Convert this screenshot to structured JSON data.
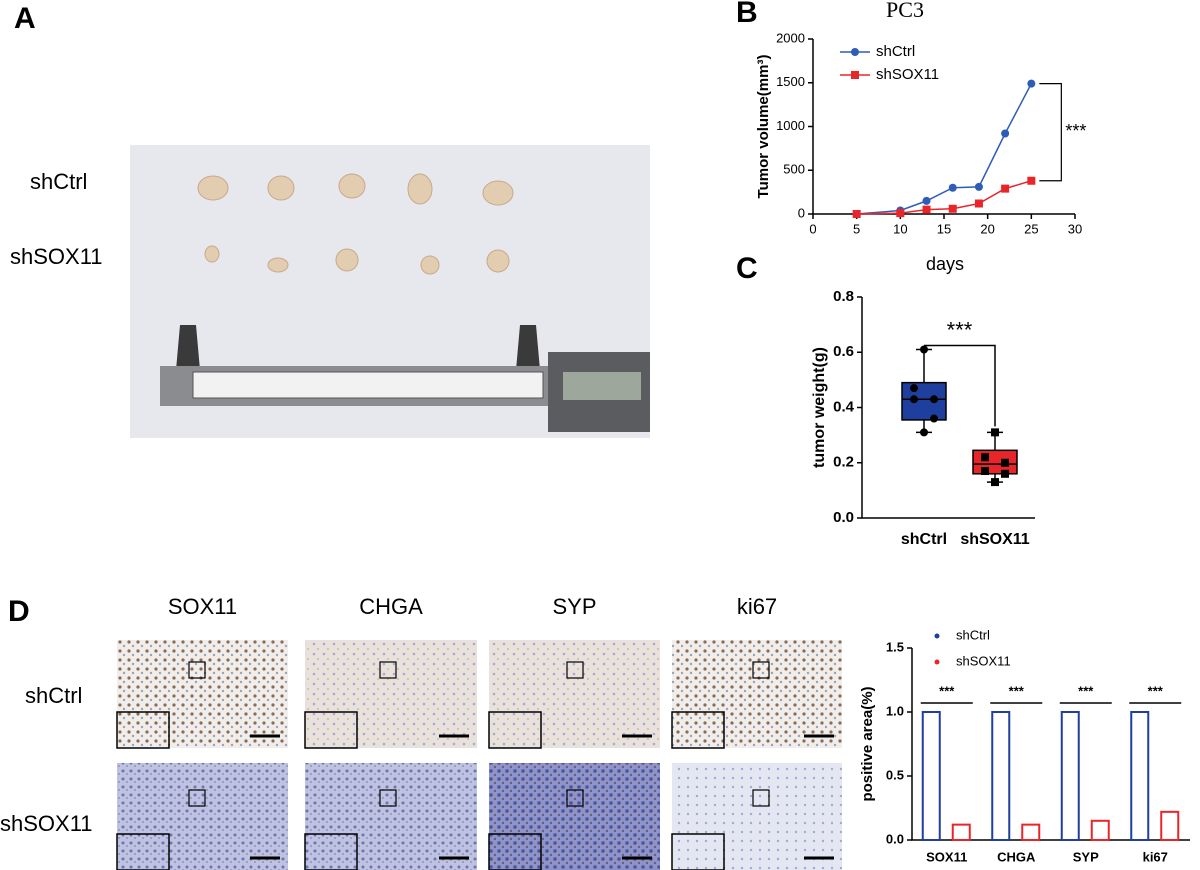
{
  "panel_labels": [
    "A",
    "B",
    "C",
    "D"
  ],
  "photo": {
    "rows": [
      "shCtrl",
      "shSOX11"
    ]
  },
  "ihc": {
    "columns": [
      "SOX11",
      "CHGA",
      "SYP",
      "ki67"
    ],
    "rows": [
      "shCtrl",
      "shSOX11"
    ]
  },
  "chart_data": [
    {
      "type": "line",
      "title": "PC3",
      "x_label": "days",
      "y_label": "Tumor volume(mm³)",
      "x": [
        5,
        10,
        13,
        16,
        19,
        22,
        25
      ],
      "series": [
        {
          "name": "shCtrl",
          "color": "#2e5cb8",
          "marker": "circle",
          "values": [
            0,
            40,
            150,
            300,
            310,
            920,
            1490
          ]
        },
        {
          "name": "shSOX11",
          "color": "#e8262a",
          "marker": "square",
          "values": [
            0,
            10,
            50,
            60,
            120,
            290,
            380
          ]
        }
      ],
      "xlim": [
        0,
        30
      ],
      "xticks": [
        0,
        5,
        10,
        15,
        20,
        25,
        30
      ],
      "ylim": [
        0,
        2000
      ],
      "yticks": [
        0,
        500,
        1000,
        1500,
        2000
      ],
      "annotation": "***"
    },
    {
      "type": "box",
      "y_label": "tumor weight(g)",
      "categories": [
        "shCtrl",
        "shSOX11"
      ],
      "colors": [
        "#1f3f9f",
        "#e8262a"
      ],
      "boxes": [
        {
          "min": 0.31,
          "q1": 0.355,
          "median": 0.43,
          "q3": 0.49,
          "max": 0.61,
          "points": [
            0.61,
            0.47,
            0.43,
            0.43,
            0.36,
            0.31
          ]
        },
        {
          "min": 0.13,
          "q1": 0.16,
          "median": 0.195,
          "q3": 0.245,
          "max": 0.31,
          "points": [
            0.31,
            0.22,
            0.2,
            0.17,
            0.16,
            0.13
          ]
        }
      ],
      "ylim": [
        0,
        0.8
      ],
      "yticks": [
        {
          "value": 0,
          "label": "0.0"
        },
        0.2,
        0.4,
        0.6,
        0.8
      ],
      "annotation": "***"
    },
    {
      "type": "bar",
      "y_label": "positive area(%)",
      "categories": [
        "SOX11",
        "CHGA",
        "SYP",
        "ki67"
      ],
      "series": [
        {
          "name": "shCtrl",
          "color": "#1f3f9f",
          "values": [
            1,
            1,
            1,
            1
          ]
        },
        {
          "name": "shSOX11",
          "color": "#e8262a",
          "values": [
            0.12,
            0.12,
            0.15,
            0.22
          ]
        }
      ],
      "ylim": [
        0,
        1.5
      ],
      "yticks": [
        {
          "value": 0,
          "label": "0.0"
        },
        0.5,
        {
          "value": 1,
          "label": "1.0"
        },
        1.5
      ],
      "annotations": [
        "***",
        "***",
        "***",
        "***"
      ]
    }
  ]
}
